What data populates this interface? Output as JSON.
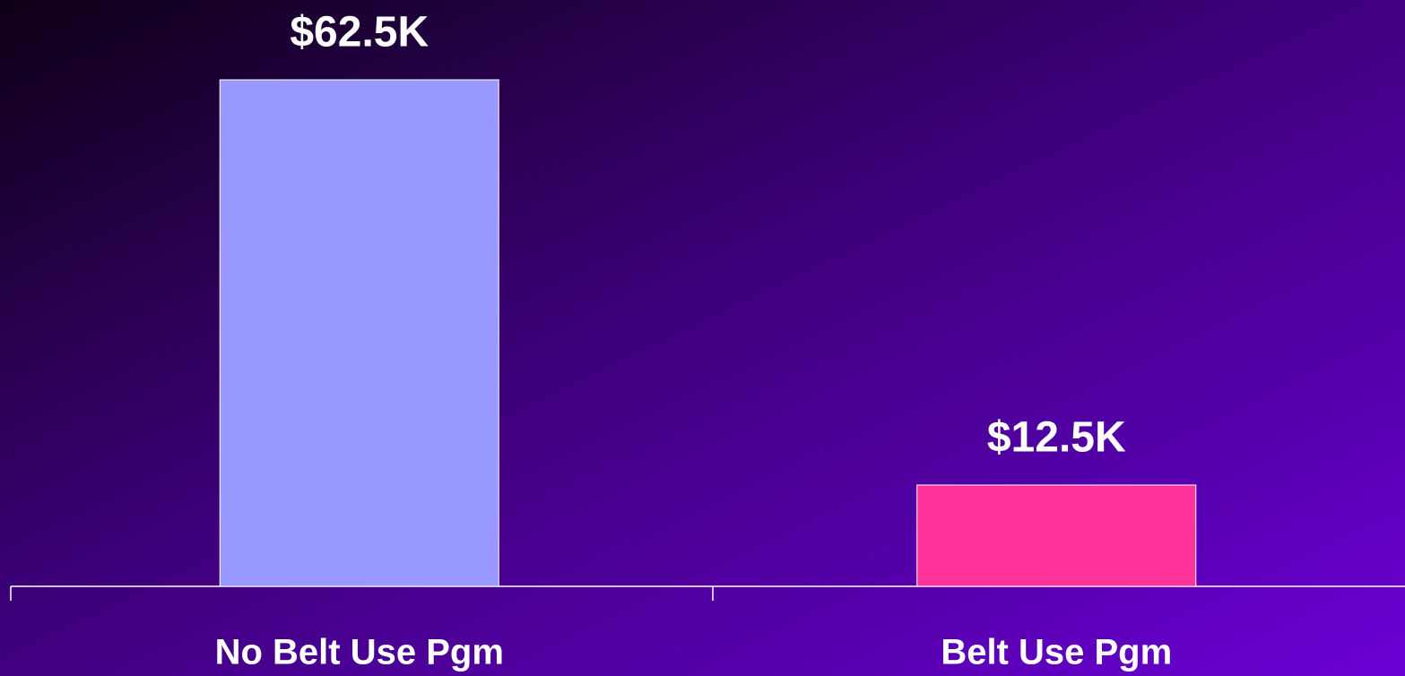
{
  "chart_data": {
    "type": "bar",
    "categories": [
      "No Belt Use Pgm",
      "Belt Use Pgm"
    ],
    "values": [
      62.5,
      12.5
    ],
    "value_labels": [
      "$62.5K",
      "$12.5K"
    ],
    "colors": [
      "#9999ff",
      "#ff3399"
    ],
    "grid": false
  }
}
